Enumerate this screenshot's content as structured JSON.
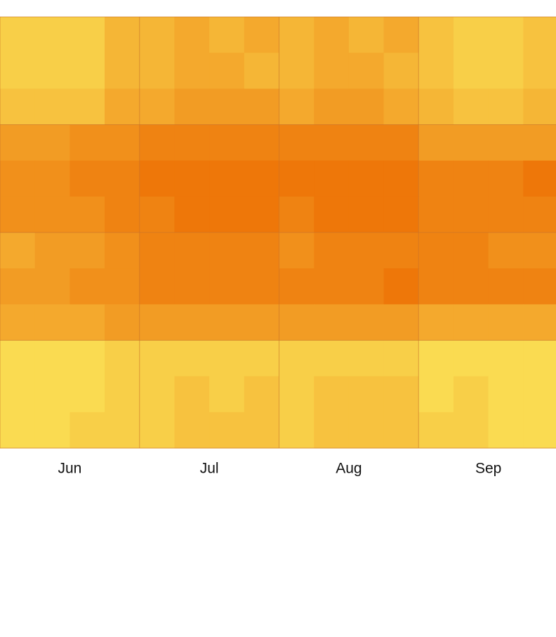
{
  "chart_data": {
    "type": "heatmap",
    "categories": [
      "Jun",
      "Jul",
      "Aug",
      "Sep"
    ],
    "columns_per_category": 4,
    "colors": [
      "#fbe85a",
      "#ec6a00"
    ],
    "vlim": [
      0,
      10
    ],
    "values": [
      [
        2,
        2,
        2,
        4,
        4,
        5,
        4,
        5,
        4,
        5,
        4,
        5,
        3,
        2,
        2,
        3
      ],
      [
        2,
        2,
        2,
        4,
        4,
        5,
        5,
        4,
        4,
        5,
        5,
        4,
        3,
        2,
        2,
        3
      ],
      [
        3,
        3,
        3,
        5,
        5,
        6,
        6,
        6,
        5,
        6,
        6,
        5,
        4,
        3,
        3,
        4
      ],
      [
        6,
        6,
        7,
        7,
        8,
        8,
        8,
        8,
        8,
        8,
        8,
        8,
        6,
        6,
        6,
        6
      ],
      [
        7,
        7,
        8,
        8,
        9,
        9,
        9,
        9,
        9,
        9,
        9,
        9,
        8,
        8,
        8,
        9
      ],
      [
        7,
        7,
        7,
        8,
        8,
        9,
        9,
        9,
        8,
        9,
        9,
        9,
        8,
        8,
        8,
        8
      ],
      [
        5,
        6,
        6,
        7,
        8,
        8,
        8,
        8,
        7,
        8,
        8,
        8,
        8,
        8,
        7,
        7
      ],
      [
        6,
        6,
        7,
        7,
        8,
        8,
        8,
        8,
        8,
        8,
        8,
        9,
        8,
        8,
        8,
        8
      ],
      [
        5,
        5,
        5,
        6,
        6,
        6,
        6,
        6,
        6,
        6,
        6,
        6,
        5,
        5,
        5,
        5
      ],
      [
        1,
        1,
        1,
        2,
        2,
        2,
        2,
        2,
        2,
        2,
        2,
        2,
        1,
        1,
        1,
        1
      ],
      [
        1,
        1,
        1,
        2,
        2,
        3,
        2,
        3,
        2,
        3,
        3,
        3,
        1,
        2,
        1,
        1
      ],
      [
        1,
        1,
        2,
        2,
        2,
        3,
        3,
        3,
        2,
        3,
        3,
        3,
        2,
        2,
        1,
        1
      ]
    ]
  }
}
